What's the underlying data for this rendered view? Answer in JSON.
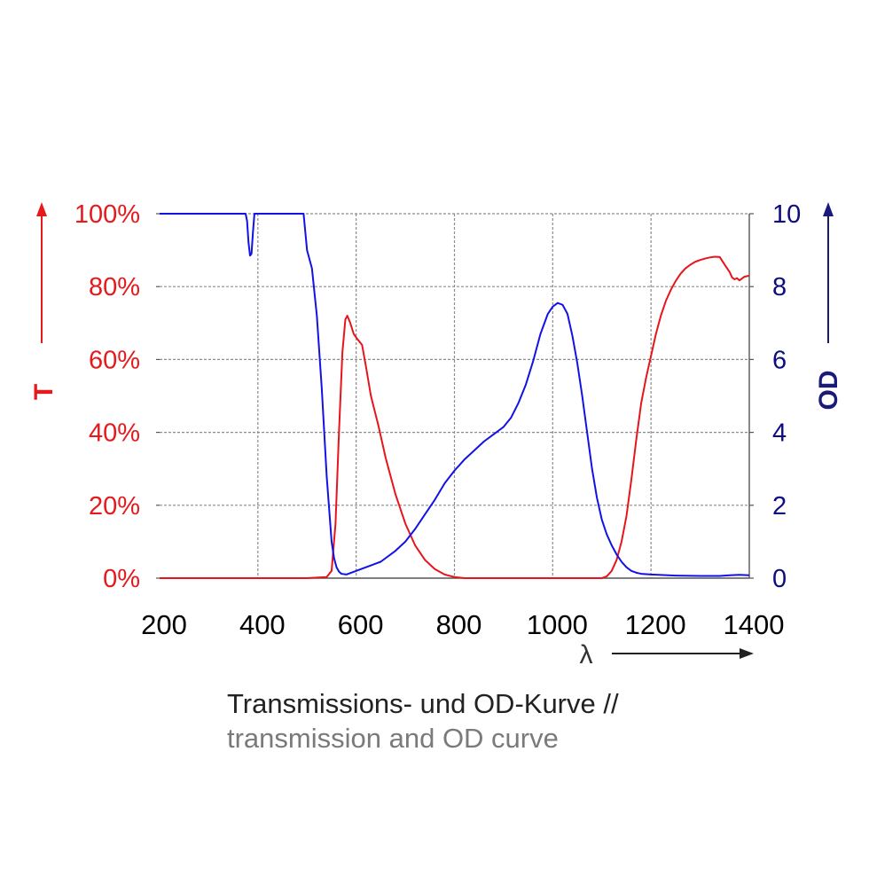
{
  "chart_data": {
    "type": "line",
    "xlim": [
      200,
      1400
    ],
    "x_ticks": [
      "200",
      "400",
      "600",
      "800",
      "1000",
      "1200",
      "1400"
    ],
    "x_tick_values": [
      200,
      400,
      600,
      800,
      1000,
      1200,
      1400
    ],
    "xlabel": "λ",
    "left_axis": {
      "label": "T",
      "ylim": [
        0,
        100
      ],
      "ticks": [
        "0%",
        "20%",
        "40%",
        "60%",
        "80%",
        "100%"
      ],
      "tick_values": [
        0,
        20,
        40,
        60,
        80,
        100
      ],
      "color": "#e41a1c"
    },
    "right_axis": {
      "label": "OD",
      "ylim": [
        0,
        10
      ],
      "ticks": [
        "0",
        "2",
        "4",
        "6",
        "8",
        "10"
      ],
      "tick_values": [
        0,
        2,
        4,
        6,
        8,
        10
      ],
      "color": "#1a1a7a"
    },
    "grid": true,
    "series": [
      {
        "axis": "left",
        "color": "#e8141c",
        "points": [
          [
            200,
            0
          ],
          [
            500,
            0
          ],
          [
            540,
            0.3
          ],
          [
            550,
            2
          ],
          [
            558,
            15
          ],
          [
            565,
            40
          ],
          [
            572,
            62
          ],
          [
            578,
            71
          ],
          [
            582,
            72
          ],
          [
            588,
            70
          ],
          [
            595,
            67
          ],
          [
            603,
            65.5
          ],
          [
            612,
            64
          ],
          [
            620,
            58
          ],
          [
            630,
            50
          ],
          [
            645,
            42
          ],
          [
            660,
            33
          ],
          [
            680,
            23
          ],
          [
            700,
            15
          ],
          [
            720,
            9
          ],
          [
            740,
            5
          ],
          [
            760,
            2.5
          ],
          [
            780,
            1
          ],
          [
            800,
            0.3
          ],
          [
            820,
            0
          ],
          [
            1100,
            0
          ],
          [
            1110,
            0.5
          ],
          [
            1120,
            2
          ],
          [
            1130,
            5
          ],
          [
            1140,
            10
          ],
          [
            1150,
            17
          ],
          [
            1160,
            27
          ],
          [
            1170,
            38
          ],
          [
            1180,
            48
          ],
          [
            1190,
            55
          ],
          [
            1200,
            61
          ],
          [
            1210,
            67
          ],
          [
            1220,
            72
          ],
          [
            1230,
            76
          ],
          [
            1240,
            79
          ],
          [
            1250,
            81.5
          ],
          [
            1260,
            83.5
          ],
          [
            1270,
            85
          ],
          [
            1280,
            86
          ],
          [
            1290,
            86.8
          ],
          [
            1300,
            87.3
          ],
          [
            1310,
            87.7
          ],
          [
            1320,
            88
          ],
          [
            1330,
            88.2
          ],
          [
            1340,
            88.1
          ],
          [
            1350,
            86
          ],
          [
            1360,
            84
          ],
          [
            1365,
            82.5
          ],
          [
            1370,
            82
          ],
          [
            1375,
            82.3
          ],
          [
            1380,
            81.7
          ],
          [
            1385,
            82.2
          ],
          [
            1390,
            82.7
          ],
          [
            1400,
            83
          ]
        ]
      },
      {
        "axis": "right",
        "color": "#1212e6",
        "points": [
          [
            200,
            10
          ],
          [
            375,
            10
          ],
          [
            378,
            9.8
          ],
          [
            381,
            9.2
          ],
          [
            384,
            8.85
          ],
          [
            387,
            8.9
          ],
          [
            390,
            9.5
          ],
          [
            393,
            10
          ],
          [
            493,
            10
          ],
          [
            500,
            9.0
          ],
          [
            510,
            8.5
          ],
          [
            520,
            7.2
          ],
          [
            530,
            5.2
          ],
          [
            540,
            2.8
          ],
          [
            550,
            1.0
          ],
          [
            555,
            0.55
          ],
          [
            560,
            0.3
          ],
          [
            565,
            0.18
          ],
          [
            570,
            0.12
          ],
          [
            580,
            0.1
          ],
          [
            600,
            0.2
          ],
          [
            620,
            0.3
          ],
          [
            650,
            0.45
          ],
          [
            680,
            0.75
          ],
          [
            700,
            1.0
          ],
          [
            720,
            1.35
          ],
          [
            740,
            1.75
          ],
          [
            760,
            2.15
          ],
          [
            780,
            2.6
          ],
          [
            800,
            2.95
          ],
          [
            820,
            3.25
          ],
          [
            840,
            3.5
          ],
          [
            860,
            3.75
          ],
          [
            880,
            3.95
          ],
          [
            900,
            4.15
          ],
          [
            915,
            4.4
          ],
          [
            930,
            4.8
          ],
          [
            945,
            5.3
          ],
          [
            960,
            5.95
          ],
          [
            975,
            6.7
          ],
          [
            990,
            7.25
          ],
          [
            1000,
            7.45
          ],
          [
            1010,
            7.55
          ],
          [
            1020,
            7.5
          ],
          [
            1030,
            7.25
          ],
          [
            1040,
            6.65
          ],
          [
            1050,
            5.9
          ],
          [
            1060,
            5.0
          ],
          [
            1070,
            4.0
          ],
          [
            1080,
            3.0
          ],
          [
            1090,
            2.2
          ],
          [
            1100,
            1.6
          ],
          [
            1110,
            1.2
          ],
          [
            1120,
            0.9
          ],
          [
            1130,
            0.65
          ],
          [
            1140,
            0.45
          ],
          [
            1150,
            0.3
          ],
          [
            1160,
            0.2
          ],
          [
            1170,
            0.15
          ],
          [
            1180,
            0.12
          ],
          [
            1200,
            0.1
          ],
          [
            1250,
            0.07
          ],
          [
            1300,
            0.06
          ],
          [
            1340,
            0.06
          ],
          [
            1360,
            0.08
          ],
          [
            1380,
            0.09
          ],
          [
            1400,
            0.08
          ]
        ]
      }
    ]
  },
  "caption": {
    "line1": "Transmissions- und OD-Kurve //",
    "line2": "transmission and OD curve"
  }
}
